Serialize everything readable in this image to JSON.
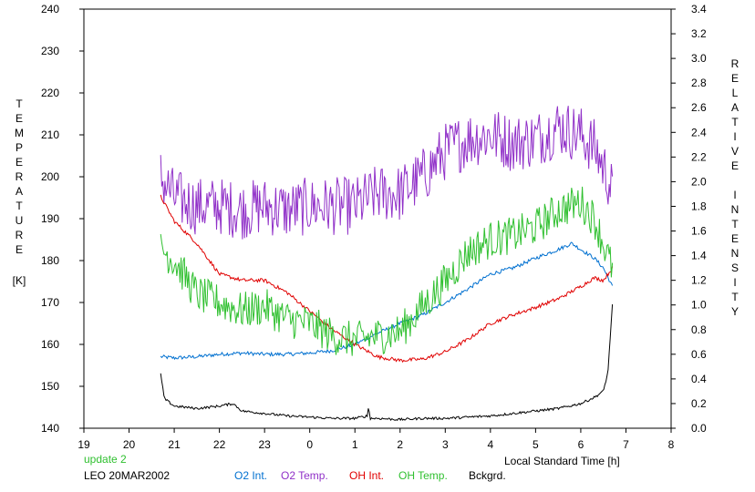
{
  "chart_data": {
    "type": "line",
    "title": "",
    "xlabel": "Local Standard Time [h]",
    "ylabel_left": "TEMPERATURE",
    "ylabel_left_unit": "[K]",
    "ylabel_right": "RELATIVE INTENSITY",
    "x_ticks": [
      {
        "v": 0,
        "label": "19"
      },
      {
        "v": 1,
        "label": "20"
      },
      {
        "v": 2,
        "label": "21"
      },
      {
        "v": 3,
        "label": "22"
      },
      {
        "v": 4,
        "label": "23"
      },
      {
        "v": 5,
        "label": "0"
      },
      {
        "v": 6,
        "label": "1"
      },
      {
        "v": 7,
        "label": "2"
      },
      {
        "v": 8,
        "label": "3"
      },
      {
        "v": 9,
        "label": "4"
      },
      {
        "v": 10,
        "label": "5"
      },
      {
        "v": 11,
        "label": "6"
      },
      {
        "v": 12,
        "label": "7"
      },
      {
        "v": 13,
        "label": "8"
      }
    ],
    "xlim": [
      0,
      13
    ],
    "ylim_left": [
      140,
      240
    ],
    "yticks_left": [
      140,
      150,
      160,
      170,
      180,
      190,
      200,
      210,
      220,
      230,
      240
    ],
    "ylim_right": [
      0.0,
      3.4
    ],
    "yticks_right": [
      "0.0",
      "0.2",
      "0.4",
      "0.6",
      "0.8",
      "1.0",
      "1.2",
      "1.4",
      "1.6",
      "1.8",
      "2.0",
      "2.2",
      "2.4",
      "2.6",
      "2.8",
      "3.0",
      "3.2",
      "3.4"
    ],
    "series": [
      {
        "name": "O2 Int.",
        "axis": "right",
        "color": "#0070d0",
        "noise": 0.015,
        "points": [
          [
            1.7,
            0.58
          ],
          [
            2,
            0.57
          ],
          [
            2.5,
            0.58
          ],
          [
            3,
            0.6
          ],
          [
            3.5,
            0.61
          ],
          [
            4,
            0.6
          ],
          [
            4.5,
            0.6
          ],
          [
            5,
            0.61
          ],
          [
            5.5,
            0.63
          ],
          [
            6,
            0.68
          ],
          [
            6.5,
            0.77
          ],
          [
            7,
            0.85
          ],
          [
            7.5,
            0.92
          ],
          [
            8,
            1.02
          ],
          [
            8.5,
            1.13
          ],
          [
            9,
            1.25
          ],
          [
            9.5,
            1.3
          ],
          [
            10,
            1.38
          ],
          [
            10.5,
            1.45
          ],
          [
            10.8,
            1.5
          ],
          [
            11,
            1.45
          ],
          [
            11.3,
            1.38
          ],
          [
            11.5,
            1.3
          ],
          [
            11.7,
            1.15
          ]
        ]
      },
      {
        "name": "O2 Temp.",
        "axis": "left",
        "color": "#9030c8",
        "noise": 7,
        "points": [
          [
            1.7,
            200
          ],
          [
            2,
            195
          ],
          [
            2.5,
            193
          ],
          [
            3,
            193
          ],
          [
            3.5,
            192
          ],
          [
            4,
            193
          ],
          [
            4.5,
            192
          ],
          [
            5,
            193
          ],
          [
            5.5,
            193
          ],
          [
            6,
            193
          ],
          [
            6.5,
            196
          ],
          [
            7,
            196
          ],
          [
            7.5,
            200
          ],
          [
            8,
            206
          ],
          [
            8.5,
            209
          ],
          [
            9,
            210
          ],
          [
            9.5,
            208
          ],
          [
            10,
            209
          ],
          [
            10.5,
            212
          ],
          [
            11,
            210
          ],
          [
            11.3,
            207
          ],
          [
            11.6,
            200
          ],
          [
            11.7,
            196
          ]
        ]
      },
      {
        "name": "OH Int.",
        "axis": "right",
        "color": "#e00000",
        "noise": 0.015,
        "points": [
          [
            1.7,
            1.88
          ],
          [
            2,
            1.68
          ],
          [
            2.5,
            1.5
          ],
          [
            3,
            1.25
          ],
          [
            3.5,
            1.2
          ],
          [
            4,
            1.2
          ],
          [
            4.5,
            1.1
          ],
          [
            5,
            0.95
          ],
          [
            5.5,
            0.8
          ],
          [
            6,
            0.68
          ],
          [
            6.5,
            0.58
          ],
          [
            7,
            0.55
          ],
          [
            7.5,
            0.56
          ],
          [
            8,
            0.62
          ],
          [
            8.5,
            0.72
          ],
          [
            9,
            0.85
          ],
          [
            9.5,
            0.92
          ],
          [
            10,
            0.98
          ],
          [
            10.5,
            1.05
          ],
          [
            11,
            1.15
          ],
          [
            11.3,
            1.22
          ],
          [
            11.5,
            1.2
          ],
          [
            11.7,
            1.3
          ]
        ]
      },
      {
        "name": "OH Temp.",
        "axis": "left",
        "color": "#30c030",
        "noise": 4.5,
        "points": [
          [
            1.7,
            183
          ],
          [
            2,
            180
          ],
          [
            2.5,
            172
          ],
          [
            3,
            170
          ],
          [
            3.5,
            168
          ],
          [
            4,
            169
          ],
          [
            4.5,
            166
          ],
          [
            5,
            165
          ],
          [
            5.5,
            162
          ],
          [
            6,
            161
          ],
          [
            6.5,
            162
          ],
          [
            7,
            163
          ],
          [
            7.5,
            169
          ],
          [
            8,
            175
          ],
          [
            8.5,
            182
          ],
          [
            9,
            185
          ],
          [
            9.5,
            186
          ],
          [
            10,
            188
          ],
          [
            10.5,
            192
          ],
          [
            11,
            194
          ],
          [
            11.3,
            190
          ],
          [
            11.5,
            184
          ],
          [
            11.7,
            178
          ]
        ]
      },
      {
        "name": "Bckgrd.",
        "axis": "right",
        "color": "#000000",
        "noise": 0.01,
        "points": [
          [
            1.7,
            0.44
          ],
          [
            1.78,
            0.24
          ],
          [
            2,
            0.18
          ],
          [
            2.5,
            0.16
          ],
          [
            3,
            0.18
          ],
          [
            3.3,
            0.2
          ],
          [
            3.5,
            0.14
          ],
          [
            4,
            0.12
          ],
          [
            4.5,
            0.1
          ],
          [
            5,
            0.09
          ],
          [
            5.5,
            0.08
          ],
          [
            6,
            0.08
          ],
          [
            6.28,
            0.1
          ],
          [
            6.3,
            0.18
          ],
          [
            6.34,
            0.08
          ],
          [
            6.5,
            0.08
          ],
          [
            7,
            0.07
          ],
          [
            7.5,
            0.08
          ],
          [
            8,
            0.08
          ],
          [
            8.5,
            0.09
          ],
          [
            9,
            0.1
          ],
          [
            9.5,
            0.12
          ],
          [
            10,
            0.14
          ],
          [
            10.5,
            0.16
          ],
          [
            11,
            0.2
          ],
          [
            11.3,
            0.25
          ],
          [
            11.5,
            0.3
          ],
          [
            11.6,
            0.45
          ],
          [
            11.7,
            1.0
          ]
        ]
      }
    ],
    "annotations": {
      "update": "update 2",
      "site_date": "LEO 20MAR2002"
    },
    "grid": false
  }
}
